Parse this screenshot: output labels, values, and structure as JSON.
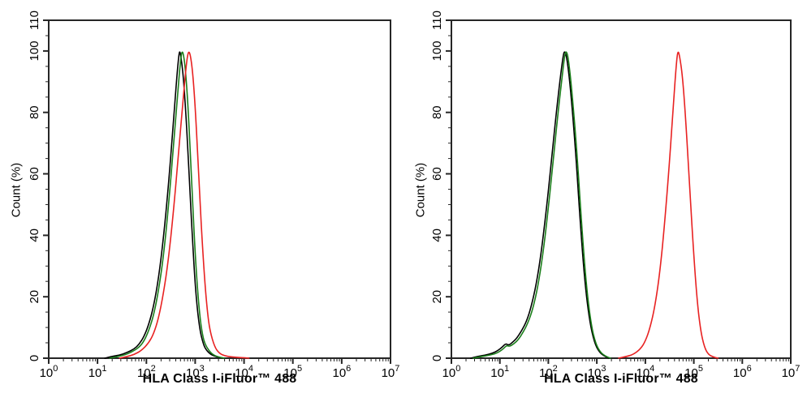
{
  "style": {
    "axis_color": "#262626",
    "background": "#ffffff",
    "series_colors": {
      "black": "#000000",
      "green": "#1a7e1a",
      "red": "#e82222"
    }
  },
  "chart_data": [
    {
      "id": "left-panel",
      "type": "line",
      "title": "",
      "xlabel": "HLA Class I-iFluor™ 488",
      "ylabel": "Count  (%)",
      "x_scale": "log10",
      "xlim_log10": [
        0,
        7
      ],
      "ylim": [
        0,
        110
      ],
      "x_tick_exponents": [
        0,
        1,
        2,
        3,
        4,
        5,
        6,
        7
      ],
      "y_ticks": [
        0,
        20,
        40,
        60,
        80,
        100,
        110
      ],
      "y_minor_tick_step": 5,
      "grid": false,
      "legend": "none",
      "series": [
        {
          "name": "black-histogram",
          "color": "#000000",
          "peak_x": 480,
          "peak_log10": 2.68,
          "points": [
            [
              1.15,
              0
            ],
            [
              1.3,
              0.6
            ],
            [
              1.45,
              1
            ],
            [
              1.6,
              1.8
            ],
            [
              1.75,
              3
            ],
            [
              1.85,
              4.5
            ],
            [
              1.95,
              7
            ],
            [
              2.05,
              11
            ],
            [
              2.15,
              17
            ],
            [
              2.25,
              26
            ],
            [
              2.35,
              39
            ],
            [
              2.45,
              56
            ],
            [
              2.55,
              76
            ],
            [
              2.62,
              91
            ],
            [
              2.66,
              98
            ],
            [
              2.68,
              100
            ],
            [
              2.7,
              99
            ],
            [
              2.75,
              93
            ],
            [
              2.8,
              82
            ],
            [
              2.85,
              68
            ],
            [
              2.9,
              52
            ],
            [
              2.95,
              37
            ],
            [
              3.0,
              24
            ],
            [
              3.05,
              15
            ],
            [
              3.1,
              9
            ],
            [
              3.15,
              5.5
            ],
            [
              3.2,
              3.2
            ],
            [
              3.3,
              1.4
            ],
            [
              3.4,
              0.6
            ],
            [
              3.5,
              0.2
            ],
            [
              3.6,
              0
            ]
          ]
        },
        {
          "name": "green-histogram",
          "color": "#1a7e1a",
          "peak_x": 540,
          "peak_log10": 2.73,
          "points": [
            [
              1.25,
              0
            ],
            [
              1.4,
              0.5
            ],
            [
              1.55,
              1
            ],
            [
              1.7,
              2
            ],
            [
              1.85,
              3.5
            ],
            [
              1.95,
              5.5
            ],
            [
              2.05,
              9
            ],
            [
              2.15,
              14
            ],
            [
              2.25,
              22
            ],
            [
              2.35,
              33
            ],
            [
              2.45,
              49
            ],
            [
              2.55,
              68
            ],
            [
              2.65,
              88
            ],
            [
              2.7,
              97
            ],
            [
              2.73,
              100
            ],
            [
              2.76,
              99
            ],
            [
              2.8,
              94
            ],
            [
              2.85,
              83
            ],
            [
              2.9,
              67
            ],
            [
              2.95,
              50
            ],
            [
              3.0,
              34
            ],
            [
              3.05,
              22
            ],
            [
              3.1,
              13
            ],
            [
              3.15,
              7.5
            ],
            [
              3.2,
              4.5
            ],
            [
              3.3,
              2
            ],
            [
              3.4,
              0.8
            ],
            [
              3.5,
              0.3
            ],
            [
              3.6,
              0
            ]
          ]
        },
        {
          "name": "red-histogram",
          "color": "#e82222",
          "peak_x": 720,
          "peak_log10": 2.86,
          "points": [
            [
              1.45,
              0
            ],
            [
              1.6,
              0.5
            ],
            [
              1.75,
              1.2
            ],
            [
              1.9,
              2.5
            ],
            [
              2.05,
              5
            ],
            [
              2.15,
              8
            ],
            [
              2.25,
              13
            ],
            [
              2.35,
              21
            ],
            [
              2.45,
              32
            ],
            [
              2.55,
              47
            ],
            [
              2.65,
              65
            ],
            [
              2.75,
              84
            ],
            [
              2.82,
              96
            ],
            [
              2.86,
              100
            ],
            [
              2.9,
              99
            ],
            [
              2.95,
              93
            ],
            [
              3.0,
              82
            ],
            [
              3.05,
              67
            ],
            [
              3.1,
              51
            ],
            [
              3.15,
              36
            ],
            [
              3.2,
              24
            ],
            [
              3.25,
              15
            ],
            [
              3.3,
              9
            ],
            [
              3.4,
              3.5
            ],
            [
              3.5,
              1.5
            ],
            [
              3.6,
              0.8
            ],
            [
              3.75,
              0.4
            ],
            [
              3.95,
              0.2
            ],
            [
              4.1,
              0
            ]
          ]
        }
      ]
    },
    {
      "id": "right-panel",
      "type": "line",
      "title": "",
      "xlabel": "HLA Class I-iFluor™ 488",
      "ylabel": "Count  (%)",
      "x_scale": "log10",
      "xlim_log10": [
        0,
        7
      ],
      "ylim": [
        0,
        110
      ],
      "x_tick_exponents": [
        0,
        1,
        2,
        3,
        4,
        5,
        6,
        7
      ],
      "y_ticks": [
        0,
        20,
        40,
        60,
        80,
        100,
        110
      ],
      "y_minor_tick_step": 5,
      "grid": false,
      "legend": "none",
      "series": [
        {
          "name": "black-histogram",
          "color": "#000000",
          "peak_x": 220,
          "peak_log10": 2.34,
          "points": [
            [
              0.4,
              0
            ],
            [
              0.55,
              0.6
            ],
            [
              0.7,
              1
            ],
            [
              0.85,
              1.6
            ],
            [
              0.95,
              2.4
            ],
            [
              1.05,
              3.6
            ],
            [
              1.12,
              4.8
            ],
            [
              1.18,
              4.2
            ],
            [
              1.25,
              5
            ],
            [
              1.35,
              6.5
            ],
            [
              1.45,
              9
            ],
            [
              1.55,
              12
            ],
            [
              1.65,
              17
            ],
            [
              1.75,
              24
            ],
            [
              1.85,
              34
            ],
            [
              1.95,
              47
            ],
            [
              2.05,
              62
            ],
            [
              2.15,
              78
            ],
            [
              2.25,
              92
            ],
            [
              2.31,
              99
            ],
            [
              2.34,
              100
            ],
            [
              2.38,
              98
            ],
            [
              2.45,
              89
            ],
            [
              2.55,
              70
            ],
            [
              2.65,
              46
            ],
            [
              2.75,
              25
            ],
            [
              2.85,
              12
            ],
            [
              2.95,
              5
            ],
            [
              3.05,
              2
            ],
            [
              3.15,
              0.7
            ],
            [
              3.25,
              0
            ]
          ]
        },
        {
          "name": "green-histogram",
          "color": "#1a7e1a",
          "peak_x": 230,
          "peak_log10": 2.37,
          "points": [
            [
              0.45,
              0
            ],
            [
              0.6,
              0.5
            ],
            [
              0.75,
              0.9
            ],
            [
              0.9,
              1.4
            ],
            [
              1.0,
              2.2
            ],
            [
              1.08,
              3.2
            ],
            [
              1.14,
              4.2
            ],
            [
              1.2,
              3.8
            ],
            [
              1.28,
              4.6
            ],
            [
              1.38,
              6
            ],
            [
              1.48,
              8.5
            ],
            [
              1.58,
              11.5
            ],
            [
              1.68,
              16
            ],
            [
              1.78,
              23
            ],
            [
              1.88,
              33
            ],
            [
              1.98,
              46
            ],
            [
              2.08,
              61
            ],
            [
              2.18,
              77
            ],
            [
              2.28,
              91
            ],
            [
              2.34,
              99
            ],
            [
              2.37,
              100
            ],
            [
              2.41,
              98
            ],
            [
              2.48,
              88
            ],
            [
              2.58,
              69
            ],
            [
              2.68,
              45
            ],
            [
              2.78,
              24
            ],
            [
              2.88,
              11
            ],
            [
              2.98,
              4.5
            ],
            [
              3.08,
              1.8
            ],
            [
              3.18,
              0.6
            ],
            [
              3.28,
              0
            ]
          ]
        },
        {
          "name": "red-histogram",
          "color": "#e82222",
          "peak_x": 47000,
          "peak_log10": 4.67,
          "points": [
            [
              3.45,
              0
            ],
            [
              3.6,
              0.5
            ],
            [
              3.75,
              1.2
            ],
            [
              3.9,
              3
            ],
            [
              4.0,
              5.5
            ],
            [
              4.1,
              10
            ],
            [
              4.2,
              17
            ],
            [
              4.3,
              28
            ],
            [
              4.4,
              44
            ],
            [
              4.5,
              64
            ],
            [
              4.58,
              83
            ],
            [
              4.64,
              96
            ],
            [
              4.67,
              100
            ],
            [
              4.7,
              99
            ],
            [
              4.76,
              93
            ],
            [
              4.82,
              81
            ],
            [
              4.9,
              60
            ],
            [
              4.98,
              38
            ],
            [
              5.06,
              20
            ],
            [
              5.14,
              9
            ],
            [
              5.22,
              3.5
            ],
            [
              5.3,
              1.2
            ],
            [
              5.4,
              0.4
            ],
            [
              5.5,
              0
            ]
          ]
        }
      ]
    }
  ]
}
